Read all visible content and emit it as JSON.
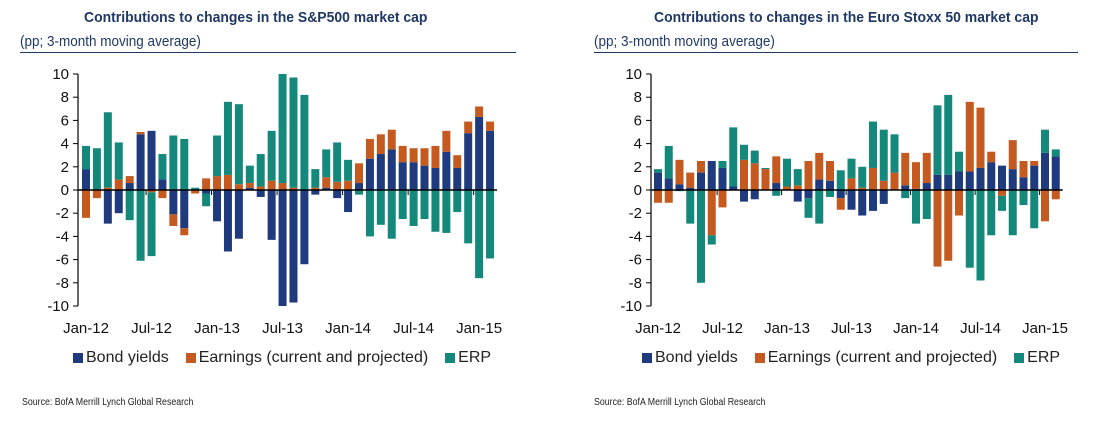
{
  "colors": {
    "bond_yields": "#1f3a7d",
    "earnings": "#c45a1f",
    "erp": "#14897b",
    "title": "#1f3864"
  },
  "chart_data": [
    {
      "type": "bar",
      "stacked": true,
      "title": "Contributions to changes in the S&P500 market cap",
      "subtitle": "(pp; 3-month moving average)",
      "xlabel": "",
      "ylabel": "",
      "ylim": [
        -10,
        10
      ],
      "yticks": [
        10,
        8,
        6,
        4,
        2,
        0,
        -2,
        -4,
        -6,
        -8,
        -10
      ],
      "xtick_labels": [
        "Jan-12",
        "Jul-12",
        "Jan-13",
        "Jul-13",
        "Jan-14",
        "Jul-14",
        "Jan-15"
      ],
      "xtick_every": 6,
      "grid": false,
      "legend_position": "bottom",
      "source": "Source: BofA Merrill Lynch Global Research",
      "categories": [
        "Jan-12",
        "Feb-12",
        "Mar-12",
        "Apr-12",
        "May-12",
        "Jun-12",
        "Jul-12",
        "Aug-12",
        "Sep-12",
        "Oct-12",
        "Nov-12",
        "Dec-12",
        "Jan-13",
        "Feb-13",
        "Mar-13",
        "Apr-13",
        "May-13",
        "Jun-13",
        "Jul-13",
        "Aug-13",
        "Sep-13",
        "Oct-13",
        "Nov-13",
        "Dec-13",
        "Jan-14",
        "Feb-14",
        "Mar-14",
        "Apr-14",
        "May-14",
        "Jun-14",
        "Jul-14",
        "Aug-14",
        "Sep-14",
        "Oct-14",
        "Nov-14",
        "Dec-14",
        "Jan-15",
        "Feb-15"
      ],
      "series": [
        {
          "name": "Bond yields",
          "key": "bond_yields",
          "values": [
            1.8,
            0,
            -2.9,
            -2.0,
            0.6,
            4.8,
            5.1,
            0.9,
            -2.1,
            -3.3,
            0,
            -0.3,
            -2.7,
            -5.3,
            -4.2,
            0.2,
            -0.6,
            -4.3,
            -10.0,
            -9.7,
            -6.4,
            -0.4,
            0.2,
            -0.7,
            -1.9,
            0.6,
            2.7,
            3.1,
            3.5,
            2.4,
            2.4,
            2.1,
            1.9,
            3.3,
            1.9,
            4.9,
            6.3,
            5.1
          ]
        },
        {
          "name": "Earnings (current and projected)",
          "key": "earnings",
          "values": [
            -2.4,
            -0.7,
            0.2,
            0.9,
            0.6,
            0.2,
            -0.2,
            -0.7,
            -1.0,
            -0.6,
            -0.3,
            1.0,
            1.2,
            1.3,
            0.5,
            0.4,
            0.3,
            0.8,
            0.6,
            0.2,
            0,
            0.2,
            0.9,
            0.7,
            0.8,
            1.7,
            1.7,
            1.7,
            1.7,
            1.4,
            1.2,
            1.5,
            1.9,
            1.8,
            1.1,
            1.0,
            0.9,
            0.8
          ]
        },
        {
          "name": "ERP",
          "key": "erp",
          "values": [
            2.0,
            3.6,
            6.5,
            3.2,
            -2.6,
            -6.1,
            -5.5,
            2.2,
            4.7,
            4.4,
            0.2,
            -1.1,
            3.5,
            6.3,
            6.9,
            1.5,
            2.8,
            4.3,
            9.4,
            9.5,
            8.2,
            1.6,
            2.4,
            3.4,
            1.8,
            -0.4,
            -4.0,
            -3.0,
            -4.2,
            -2.5,
            -3.1,
            -2.5,
            -3.6,
            -3.7,
            -1.9,
            -4.6,
            -7.6,
            -5.9
          ]
        }
      ]
    },
    {
      "type": "bar",
      "stacked": true,
      "title": "Contributions to changes in the Euro Stoxx 50 market cap",
      "subtitle": "(pp; 3-month moving average)",
      "xlabel": "",
      "ylabel": "",
      "ylim": [
        -10,
        10
      ],
      "yticks": [
        10,
        8,
        6,
        4,
        2,
        0,
        -2,
        -4,
        -6,
        -8,
        -10
      ],
      "xtick_labels": [
        "Jan-12",
        "Jul-12",
        "Jan-13",
        "Jul-13",
        "Jan-14",
        "Jul-14",
        "Jan-15"
      ],
      "xtick_every": 6,
      "grid": false,
      "legend_position": "bottom",
      "source": "Source: BofA Merrill Lynch Global Research",
      "categories": [
        "Jan-12",
        "Feb-12",
        "Mar-12",
        "Apr-12",
        "May-12",
        "Jun-12",
        "Jul-12",
        "Aug-12",
        "Sep-12",
        "Oct-12",
        "Nov-12",
        "Dec-12",
        "Jan-13",
        "Feb-13",
        "Mar-13",
        "Apr-13",
        "May-13",
        "Jun-13",
        "Jul-13",
        "Aug-13",
        "Sep-13",
        "Oct-13",
        "Nov-13",
        "Dec-13",
        "Jan-14",
        "Feb-14",
        "Mar-14",
        "Apr-14",
        "May-14",
        "Jun-14",
        "Jul-14",
        "Aug-14",
        "Sep-14",
        "Oct-14",
        "Nov-14",
        "Dec-14",
        "Jan-15",
        "Feb-15"
      ],
      "series": [
        {
          "name": "Bond yields",
          "key": "bond_yields",
          "values": [
            1.5,
            1.0,
            0.5,
            0.2,
            1.5,
            2.5,
            1.9,
            0.3,
            -1.0,
            -0.8,
            0,
            0.6,
            0,
            -1.0,
            -0.7,
            0.9,
            0.8,
            -0.7,
            -1.7,
            -2.2,
            -1.8,
            -1.2,
            0,
            0.4,
            0.1,
            0.6,
            1.3,
            1.3,
            1.6,
            1.6,
            1.9,
            2.4,
            2.1,
            1.8,
            1.1,
            2.1,
            3.2,
            2.9
          ]
        },
        {
          "name": "Earnings (current and projected)",
          "key": "earnings",
          "values": [
            -1.1,
            -1.1,
            2.1,
            1.3,
            1.0,
            -3.9,
            -1.5,
            0,
            2.6,
            2.3,
            1.8,
            2.3,
            0.3,
            0.4,
            2.5,
            2.3,
            1.7,
            -1.0,
            1.0,
            0.2,
            1.9,
            0.8,
            1.5,
            2.8,
            2.3,
            2.6,
            -6.6,
            -6.1,
            -2.2,
            6.0,
            5.2,
            0.9,
            -0.5,
            2.5,
            1.4,
            0.4,
            -2.7,
            -0.8
          ]
        },
        {
          "name": "ERP",
          "key": "erp",
          "values": [
            0.3,
            2.8,
            -0.1,
            -2.9,
            -8.0,
            -0.8,
            0.6,
            5.1,
            1.3,
            1.1,
            0.1,
            -0.5,
            2.4,
            1.4,
            -1.7,
            -2.9,
            -0.6,
            1.7,
            1.7,
            1.8,
            4.0,
            4.4,
            3.3,
            -0.7,
            -2.9,
            -2.5,
            6.0,
            6.9,
            1.7,
            -6.7,
            -7.8,
            -3.9,
            -1.3,
            -3.9,
            -1.3,
            -3.3,
            2.0,
            0.6
          ]
        }
      ]
    }
  ],
  "legend": [
    {
      "label": "Bond yields",
      "key": "bond_yields"
    },
    {
      "label": "Earnings (current and projected)",
      "key": "earnings"
    },
    {
      "label": "ERP",
      "key": "erp"
    }
  ]
}
